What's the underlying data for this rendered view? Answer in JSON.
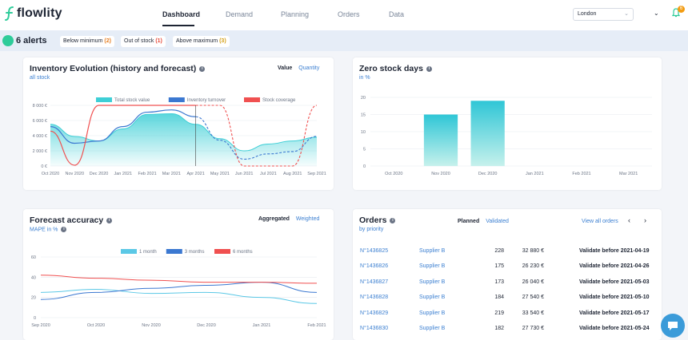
{
  "header": {
    "logo_text": "flowlity",
    "nav": [
      "Dashboard",
      "Demand",
      "Planning",
      "Orders",
      "Data"
    ],
    "location": "London",
    "notifications_count": "6"
  },
  "alerts": {
    "title": "6 alerts",
    "chips": [
      {
        "label": "Below minimum",
        "count": "(2)",
        "color": "#e67e22"
      },
      {
        "label": "Out of stock",
        "count": "(1)",
        "color": "#e74c3c"
      },
      {
        "label": "Above maximum",
        "count": "(3)",
        "color": "#d4a017"
      }
    ]
  },
  "inventory": {
    "title": "Inventory Evolution (history and forecast)",
    "subtitle": "all stock",
    "toggle_on": "Value",
    "toggle_off": "Quantity"
  },
  "zero_stock": {
    "title": "Zero stock days",
    "subtitle": "in %"
  },
  "forecast": {
    "title": "Forecast accuracy",
    "subtitle": "MAPE in %",
    "toggle_on": "Aggregated",
    "toggle_off": "Weighted"
  },
  "orders": {
    "title": "Orders",
    "subtitle": "by priority",
    "tab_on": "Planned",
    "tab_off": "Validated",
    "view_all": "View all orders",
    "rows": [
      {
        "id": "N°1436825",
        "supplier": "Supplier B",
        "qty": "228",
        "amount": "32 880 €",
        "validate": "Validate before 2021-04-19"
      },
      {
        "id": "N°1436826",
        "supplier": "Supplier B",
        "qty": "175",
        "amount": "26 230 €",
        "validate": "Validate before 2021-04-26"
      },
      {
        "id": "N°1436827",
        "supplier": "Supplier B",
        "qty": "173",
        "amount": "26 040 €",
        "validate": "Validate before 2021-05-03"
      },
      {
        "id": "N°1436828",
        "supplier": "Supplier B",
        "qty": "184",
        "amount": "27 540 €",
        "validate": "Validate before 2021-05-10"
      },
      {
        "id": "N°1436829",
        "supplier": "Supplier B",
        "qty": "219",
        "amount": "33 540 €",
        "validate": "Validate before 2021-05-17"
      },
      {
        "id": "N°1436830",
        "supplier": "Supplier B",
        "qty": "182",
        "amount": "27 730 €",
        "validate": "Validate before 2021-05-24"
      }
    ]
  },
  "chart_data": [
    {
      "type": "area",
      "categories": [
        "Oct 2020",
        "Nov 2020",
        "Dec 2020",
        "Jan 2021",
        "Feb 2021",
        "Mar 2021",
        "Apr 2021",
        "May 2021",
        "Jun 2021",
        "Jul 2021",
        "Aug 2021",
        "Sep 2021"
      ],
      "ylabels": [
        "0 €",
        "2 000 €",
        "4 000 €",
        "6 000 €",
        "8 000 €"
      ],
      "ylim": [
        0,
        8000
      ],
      "legend": [
        "Total stock value",
        "Inventory turnover",
        "Stock coverage"
      ],
      "colors": {
        "value": "#3ecfd6",
        "turnover": "#3b78d1",
        "coverage": "#f05050"
      },
      "forecast_start": "Apr 2021",
      "series": [
        {
          "name": "Total stock value",
          "values": [
            5500,
            3900,
            3300,
            4900,
            6800,
            6900,
            5500,
            3600,
            2000,
            2900,
            3300,
            3800
          ]
        },
        {
          "name": "Inventory turnover",
          "values": [
            5200,
            3000,
            3300,
            5200,
            7100,
            7400,
            6500,
            3400,
            900,
            1600,
            1900,
            3900
          ]
        },
        {
          "name": "Stock coverage",
          "values": [
            4600,
            100,
            8000,
            8000,
            8000,
            8000,
            8000,
            8000,
            0,
            0,
            0,
            8000
          ]
        }
      ]
    },
    {
      "type": "bar",
      "categories": [
        "Oct 2020",
        "Nov 2020",
        "Dec 2020",
        "Jan 2021",
        "Feb 2021",
        "Mar 2021"
      ],
      "values": [
        0,
        15,
        19,
        0,
        0,
        0
      ],
      "ylabels": [
        "0",
        "5",
        "10",
        "15",
        "20"
      ],
      "ylim": [
        0,
        20
      ]
    },
    {
      "type": "line",
      "categories": [
        "Sep 2020",
        "Oct 2020",
        "Nov 2020",
        "Dec 2020",
        "Jan 2021",
        "Feb 2021"
      ],
      "ylabels": [
        "0",
        "20",
        "40",
        "60"
      ],
      "ylim": [
        0,
        60
      ],
      "legend": [
        "1 month",
        "3 months",
        "6 months"
      ],
      "colors": {
        "m1": "#5bc8e6",
        "m3": "#3b78d1",
        "m6": "#f05050"
      },
      "series": [
        {
          "name": "1 month",
          "values": [
            25,
            28,
            24,
            25,
            20,
            14
          ]
        },
        {
          "name": "3 months",
          "values": [
            18,
            25,
            29,
            32,
            35,
            25
          ]
        },
        {
          "name": "6 months",
          "values": [
            42,
            39,
            37,
            35,
            35,
            34
          ]
        }
      ]
    }
  ]
}
